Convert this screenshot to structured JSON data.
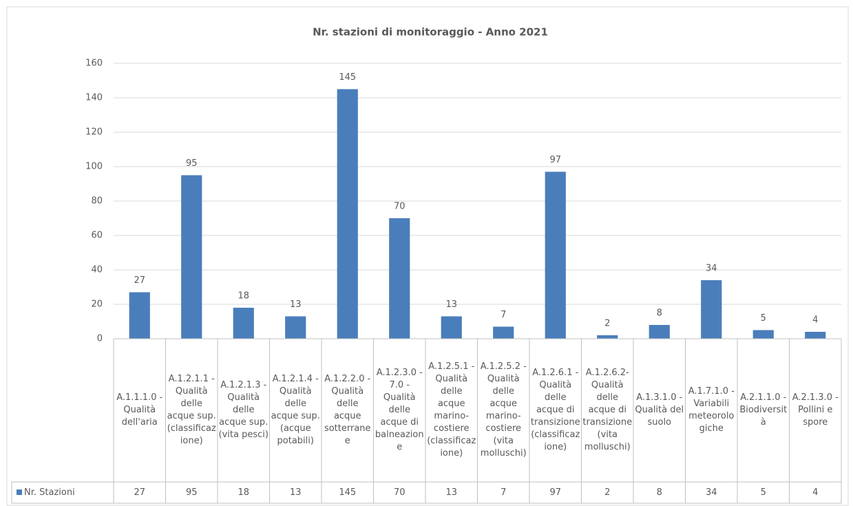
{
  "chart_data": {
    "type": "bar",
    "title": "Nr. stazioni di monitoraggio - Anno 2021",
    "categories": [
      "A.1.1.1.0 - Qualità dell'aria",
      "A.1.2.1.1 - Qualità delle acque sup. (classificazione)",
      "A.1.2.1.3 - Qualità delle acque sup. (vita pesci)",
      "A.1.2.1.4 - Qualità delle acque sup. (acque potabili)",
      "A.1.2.2.0 - Qualità delle acque sotterranee",
      "A.1.2.3.0 - 7.0 - Qualità delle acque di balneazione",
      "A.1.2.5.1 - Qualità delle acque marino-costiere (classificazione)",
      "A.1.2.5.2 - Qualità delle acque marino-costiere (vita molluschi)",
      "A.1.2.6.1 - Qualità delle acque di transizione (classificazione)",
      "A.1.2.6.2- Qualità delle acque di transizione (vita molluschi)",
      "A.1.3.1.0 - Qualità del suolo",
      "A.1.7.1.0 - Variabili meteorologiche",
      "A.2.1.1.0 - Biodiversità",
      "A.2.1.3.0 - Pollini e spore"
    ],
    "series": [
      {
        "name": "Nr. Stazioni",
        "color": "#4a7ebb",
        "values": [
          27,
          95,
          18,
          13,
          145,
          70,
          13,
          7,
          97,
          2,
          8,
          34,
          5,
          4
        ]
      }
    ],
    "ylim": [
      0,
      160
    ],
    "yticks": [
      0,
      20,
      40,
      60,
      80,
      100,
      120,
      140,
      160
    ],
    "grid": true,
    "data_table": true
  }
}
